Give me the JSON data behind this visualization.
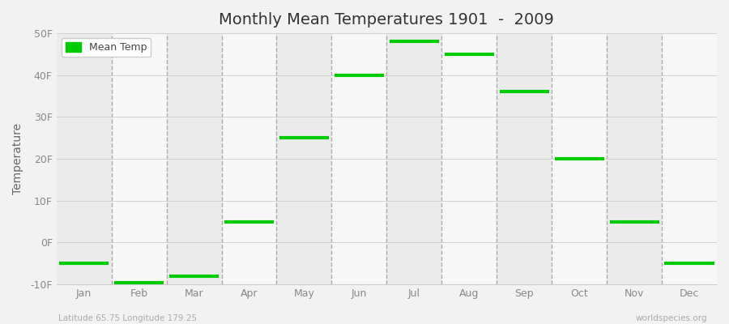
{
  "title": "Monthly Mean Temperatures 1901  -  2009",
  "ylabel": "Temperature",
  "xlabel_bottom_left": "Latitude 65.75 Longitude 179.25",
  "xlabel_bottom_right": "worldspecies.org",
  "ylim": [
    -10,
    50
  ],
  "yticks": [
    -10,
    0,
    10,
    20,
    30,
    40,
    50
  ],
  "ytick_labels": [
    "-10F",
    "0F",
    "10F",
    "20F",
    "30F",
    "40F",
    "50F"
  ],
  "months": [
    "Jan",
    "Feb",
    "Mar",
    "Apr",
    "May",
    "Jun",
    "Jul",
    "Aug",
    "Sep",
    "Oct",
    "Nov",
    "Dec"
  ],
  "temps": [
    -5,
    -9.5,
    -8,
    5,
    25,
    40,
    48,
    45,
    36,
    20,
    5,
    -5
  ],
  "line_color": "#00cc00",
  "line_width": 3,
  "bg_color": "#f2f2f2",
  "band_odd": "#ebebeb",
  "band_even": "#f7f7f7",
  "dashed_vline_color": "#aaaaaa",
  "legend_label": "Mean Temp",
  "title_fontsize": 14,
  "tick_fontsize": 9,
  "label_fontsize": 10
}
